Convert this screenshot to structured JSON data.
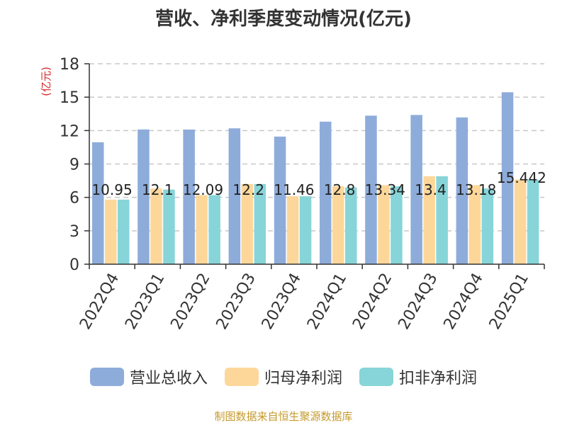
{
  "chart_data": {
    "type": "bar",
    "title": "营收、净利季度变动情况(亿元)",
    "ylabel": "(亿元)",
    "ylim": [
      0,
      18
    ],
    "yticks": [
      0,
      3,
      6,
      9,
      12,
      15,
      18
    ],
    "grid": true,
    "legend_position": "bottom",
    "categories": [
      "2022Q4",
      "2023Q1",
      "2023Q2",
      "2023Q3",
      "2023Q4",
      "2024Q1",
      "2024Q2",
      "2024Q3",
      "2024Q4",
      "2025Q1"
    ],
    "series": [
      {
        "name": "营业总收入",
        "color": "#8eacda",
        "values": [
          10.95,
          12.1,
          12.09,
          12.2,
          11.46,
          12.8,
          13.34,
          13.4,
          13.18,
          15.44
        ]
      },
      {
        "name": "归母净利润",
        "color": "#fdd79a",
        "values": [
          5.8,
          6.8,
          6.2,
          7.2,
          6.1,
          7.0,
          7.1,
          7.9,
          7.1,
          7.6
        ]
      },
      {
        "name": "扣非净利润",
        "color": "#87d5d8",
        "values": [
          5.8,
          6.7,
          6.2,
          7.2,
          6.1,
          6.9,
          7.0,
          7.9,
          6.8,
          7.6
        ]
      }
    ],
    "data_labels": [
      "10.95",
      "12.1",
      "12.09",
      "12.2",
      "11.46",
      "12.8",
      "13.34",
      "13.4",
      "13.18",
      "15.442"
    ]
  },
  "footer": "制图数据来自恒生聚源数据库"
}
